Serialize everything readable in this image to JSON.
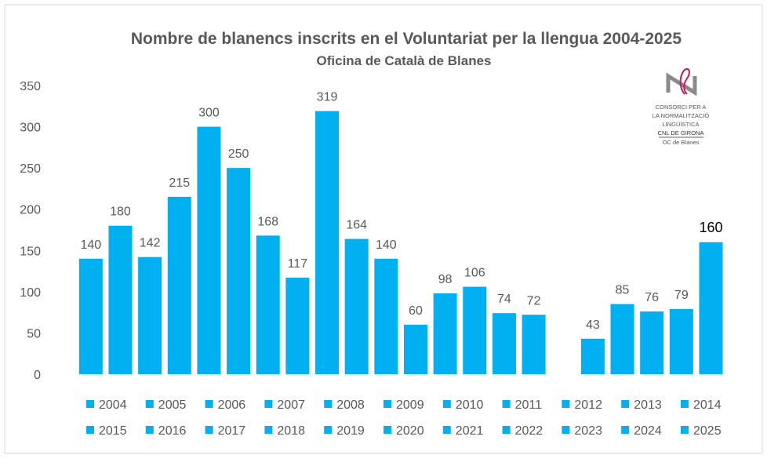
{
  "chart_data": {
    "type": "bar",
    "title": "Nombre de blanencs inscrits en el Voluntariat per la llengua 2004-2025",
    "subtitle": "Oficina de Català de Blanes",
    "categories": [
      "2004",
      "2005",
      "2006",
      "2007",
      "2008",
      "2009",
      "2010",
      "2011",
      "2012",
      "2013",
      "2014",
      "2015",
      "2016",
      "2017",
      "2018",
      "2019",
      "2020",
      "2021",
      "2022",
      "2023",
      "2024",
      "2025"
    ],
    "values": [
      140,
      180,
      142,
      215,
      300,
      250,
      168,
      117,
      319,
      164,
      140,
      60,
      98,
      106,
      74,
      72,
      null,
      43,
      85,
      76,
      79,
      160
    ],
    "ylim": [
      0,
      350
    ],
    "yticks": [
      0,
      50,
      100,
      150,
      200,
      250,
      300,
      350
    ],
    "grid": false,
    "legend": "bottom",
    "bar_color": "#00B0F0",
    "text_color": "#595959"
  },
  "logo": {
    "lines": [
      "CONSORCI PER A",
      "LA NORMALITZACIÓ",
      "LINGÜÍSTICA",
      "CNL DE GIRONA",
      "OC de Blanes"
    ],
    "accent": "#C8175D"
  }
}
